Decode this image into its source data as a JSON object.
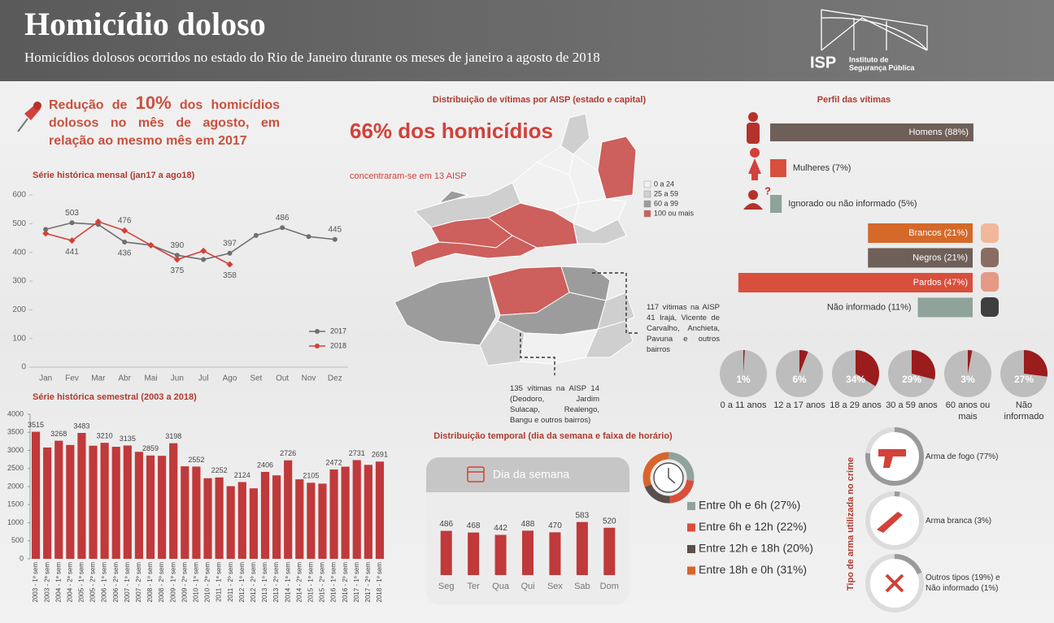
{
  "header": {
    "title": "Homicídio doloso",
    "subtitle": "Homicídios dolosos ocorridos no estado do Rio de Janeiro durante os meses de janeiro a agosto de 2018",
    "logo_short": "ISP",
    "logo_line1": "Instituto de",
    "logo_line2": "Segurança Pública"
  },
  "highlight": {
    "before": "Redução de ",
    "value": "10%",
    "after": " dos homicídios dolosos no mês de agosto, em relação ao mesmo mês em 2017"
  },
  "map": {
    "title": "Distribuição de vítimas por AISP (estado e capital)",
    "headline": "66% dos homicídios",
    "subline": "concentraram-se em 13 AISP",
    "legend": [
      {
        "label": "0 a 24",
        "color": "#f1f1f1"
      },
      {
        "label": "25 a 59",
        "color": "#cfcfcf"
      },
      {
        "label": "60 a 99",
        "color": "#9c9c9c"
      },
      {
        "label": "100 ou mais",
        "color": "#cd5f5c"
      }
    ],
    "note_north": "117 vítimas na AISP 41 Irajá, Vicente de Carvalho, Anchieta, Pavuna e outros bairros",
    "note_west": "135 vítimas na AISP 14 (Deodoro, Jardim Sulacap, Realengo, Bangu e outros bairros)"
  },
  "sections": {
    "temporal": "Distribuição temporal (dia da semana e faixa de horário)",
    "profile": "Perfil das vítimas",
    "weapon": "Tipo de arma utilizada no crime"
  },
  "chart_data": [
    {
      "type": "line",
      "title": "Série histórica mensal (jan17 a ago18)",
      "categories": [
        "Jan",
        "Fev",
        "Mar",
        "Abr",
        "Mai",
        "Jun",
        "Jul",
        "Ago",
        "Set",
        "Out",
        "Nov",
        "Dez"
      ],
      "series": [
        {
          "name": "2017",
          "color": "#6f6f6f",
          "values": [
            480,
            503,
            497,
            436,
            425,
            390,
            375,
            397,
            459,
            486,
            455,
            445
          ],
          "value_labels": [
            null,
            "503",
            null,
            "436",
            null,
            "390",
            null,
            "397",
            null,
            "486",
            null,
            "445"
          ]
        },
        {
          "name": "2018",
          "color": "#d2413a",
          "values": [
            466,
            441,
            507,
            476,
            425,
            375,
            405,
            358,
            null,
            null,
            null,
            null
          ],
          "value_labels": [
            null,
            "441",
            null,
            "476",
            null,
            "375",
            null,
            "358",
            null,
            null,
            null,
            null
          ]
        }
      ],
      "ylim": [
        0,
        600
      ],
      "yticks": [
        0,
        100,
        200,
        300,
        400,
        500,
        600
      ],
      "grid": false,
      "legend": "lower-right"
    },
    {
      "type": "bar",
      "title": "Série histórica semestral  (2003 a 2018)",
      "categories": [
        "2003 - 1º sem",
        "2003 - 2º sem",
        "2004 - 1º sem",
        "2004 - 2º sem",
        "2005 - 1º sem",
        "2005 - 2º sem",
        "2006 - 1º sem",
        "2006 - 2º sem",
        "2007 - 1º sem",
        "2007 - 2º sem",
        "2008 - 1º sem",
        "2008 - 2º sem",
        "2009 - 1º sem",
        "2009 - 2º sem",
        "2010 - 1º sem",
        "2010 - 2º sem",
        "2011 - 1º sem",
        "2011 - 2º sem",
        "2012 - 1º sem",
        "2012 - 2º sem",
        "2013 - 1º sem",
        "2013 - 2º sem",
        "2014 - 1º sem",
        "2014 - 2º sem",
        "2015 - 1º sem",
        "2015 - 2º sem",
        "2016 - 1º sem",
        "2016 - 2º sem",
        "2017 - 1º sem",
        "2017 - 2º sem",
        "2018 - 1º sem"
      ],
      "values": [
        3515,
        3080,
        3268,
        3150,
        3483,
        3130,
        3210,
        3100,
        3135,
        2960,
        2859,
        2850,
        3198,
        2560,
        2552,
        2230,
        2252,
        2010,
        2124,
        1950,
        2406,
        2310,
        2726,
        2200,
        2105,
        2080,
        2472,
        2550,
        2731,
        2600,
        2691
      ],
      "value_labels": [
        "3515",
        null,
        "3268",
        null,
        "3483",
        null,
        "3210",
        null,
        "3135",
        null,
        "2859",
        null,
        "3198",
        null,
        "2552",
        null,
        "2252",
        null,
        "2124",
        null,
        "2406",
        null,
        "2726",
        null,
        "2105",
        null,
        "2472",
        null,
        "2731",
        null,
        "2691"
      ],
      "color": "#c0393b",
      "ylim": [
        0,
        4000
      ],
      "yticks": [
        0,
        500,
        1000,
        1500,
        2000,
        2500,
        3000,
        3500,
        4000
      ]
    },
    {
      "type": "bar",
      "title": "Dia da semana",
      "categories": [
        "Seg",
        "Ter",
        "Qua",
        "Qui",
        "Sex",
        "Sab",
        "Dom"
      ],
      "values": [
        486,
        468,
        442,
        488,
        470,
        583,
        520
      ],
      "color": "#c0393b"
    },
    {
      "type": "donut",
      "categories": [
        "Entre 0h e 6h (27%)",
        "Entre 6h e 12h (22%)",
        "Entre 12h e 18h (20%)",
        "Entre 18h e 0h (31%)"
      ],
      "values": [
        27,
        22,
        20,
        31
      ],
      "colors": [
        "#8fa39b",
        "#d84f3c",
        "#5b4f4b",
        "#d8652b"
      ]
    },
    {
      "type": "hbar",
      "categories": [
        "Homens (88%)",
        "Mulheres (7%)",
        "Ignorado ou não informado (5%)"
      ],
      "values": [
        88,
        7,
        5
      ],
      "colors": [
        "#6f5f59",
        "#d84f3c",
        "#8fa39b"
      ]
    },
    {
      "type": "hbar",
      "categories": [
        "Brancos (21%)",
        "Negros (21%)",
        "Pardos (47%)",
        "Não informado (11%)"
      ],
      "values": [
        21,
        21,
        47,
        11
      ],
      "colors": [
        "#d4692a",
        "#6f5f59",
        "#d84f3c",
        "#8fa39b"
      ]
    },
    {
      "type": "pie",
      "categories": [
        "0 a 11 anos",
        "12 a 17 anos",
        "18 a 29 anos",
        "30 a 59 anos",
        "60 anos ou mais",
        "Não informado"
      ],
      "values": [
        1,
        6,
        34,
        29,
        3,
        27
      ],
      "value_labels": [
        "1%",
        "6%",
        "34%",
        "29%",
        "3%",
        "27%"
      ],
      "color": "#9b1c1c",
      "rest_color": "#bdbdbd"
    },
    {
      "type": "ring",
      "categories": [
        "Arma de fogo (77%)",
        "Arma branca (3%)",
        "Outros tipos (19%) e Não informado (1%)"
      ],
      "values": [
        77,
        3,
        19
      ],
      "color": "#9a9a9a",
      "rest_color": "#dcdcdc"
    }
  ]
}
